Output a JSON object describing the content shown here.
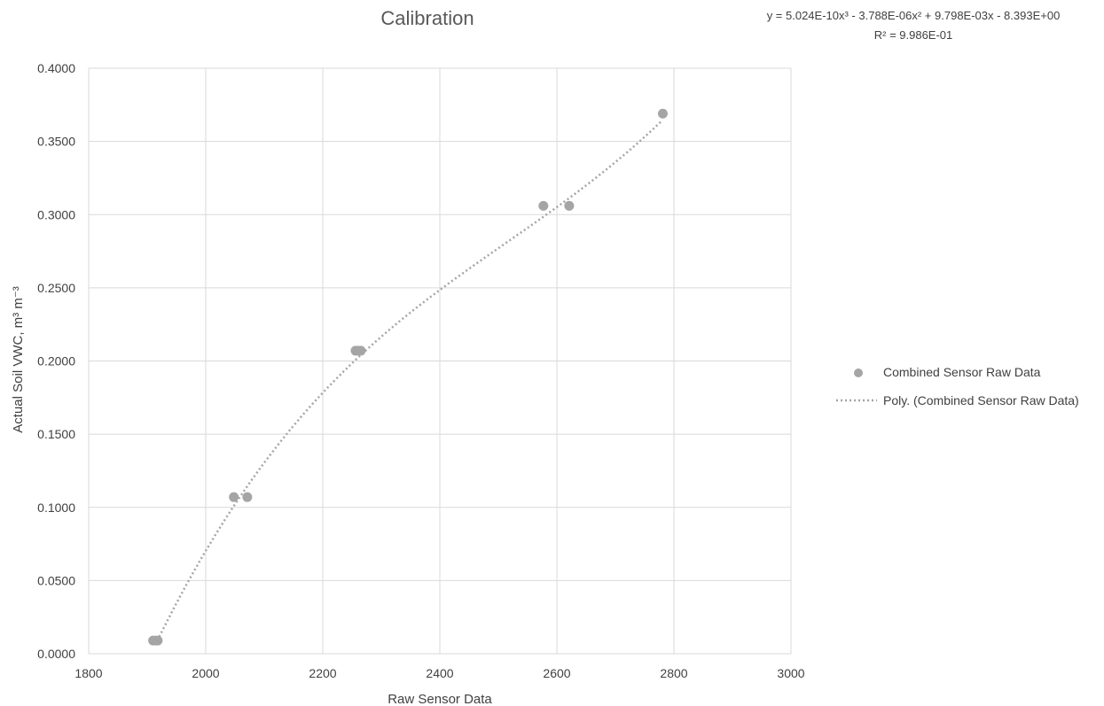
{
  "chart_data": {
    "type": "scatter",
    "title": "Calibration",
    "xlabel": "Raw Sensor Data",
    "ylabel": "Actual Soil VWC, m³ m⁻³",
    "xlim": [
      1800,
      3000
    ],
    "ylim": [
      0,
      0.4
    ],
    "x_ticks": [
      "1800",
      "2000",
      "2200",
      "2400",
      "2600",
      "2800",
      "3000"
    ],
    "y_ticks": [
      "0.0000",
      "0.0500",
      "0.1000",
      "0.1500",
      "0.2000",
      "0.2500",
      "0.3000",
      "0.3500",
      "0.4000"
    ],
    "grid": true,
    "legend_position": "right",
    "series": [
      {
        "name": "Combined Sensor Raw Data",
        "color": "#a5a5a5",
        "points": [
          {
            "x": 1910,
            "y": 0.009
          },
          {
            "x": 1914,
            "y": 0.009
          },
          {
            "x": 1918,
            "y": 0.009
          },
          {
            "x": 2048,
            "y": 0.107
          },
          {
            "x": 2071,
            "y": 0.107
          },
          {
            "x": 2256,
            "y": 0.207
          },
          {
            "x": 2260,
            "y": 0.207
          },
          {
            "x": 2265,
            "y": 0.207
          },
          {
            "x": 2577,
            "y": 0.306
          },
          {
            "x": 2621,
            "y": 0.306
          },
          {
            "x": 2781,
            "y": 0.369
          }
        ]
      }
    ],
    "trendline": {
      "name": "Poly. (Combined Sensor Raw Data)",
      "type": "polynomial",
      "order": 3,
      "style": "dotted",
      "color": "#a5a5a5",
      "coefficients": {
        "a3": 5.024e-10,
        "a2": -3.788e-06,
        "a1": 0.009798,
        "a0": -8.393
      },
      "x_range": [
        1914,
        2781
      ],
      "equation_label": "y = 5.024E-10x³ - 3.788E-06x² + 9.798E-03x - 8.393E+00",
      "r2_label": "R² = 9.986E-01"
    }
  }
}
